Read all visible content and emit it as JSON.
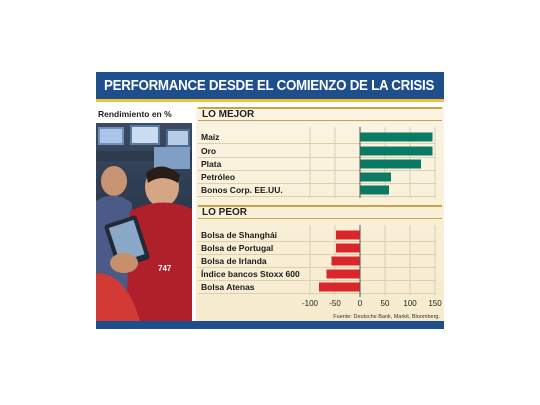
{
  "header": {
    "title": "PERFORMANCE DESDE EL COMIENZO DE LA CRISIS"
  },
  "subtitle": "Rendimiento en %",
  "source": "Fuente: Deutsche Bank, Markit, Bloomberg.",
  "colors": {
    "header_bg": "#1f4e8c",
    "header_underline": "#f4c232",
    "best_bar": "#0a7a64",
    "worst_bar": "#d8262a",
    "panel_bg": "#f8eed6"
  },
  "photo": {
    "description_icon": "trader-photo"
  },
  "chart_data": {
    "type": "bar",
    "orientation": "horizontal",
    "x_ticks": [
      -100,
      -50,
      0,
      50,
      100,
      150
    ],
    "xlim": [
      -105,
      152
    ],
    "groups": [
      {
        "name": "LO MEJOR",
        "categories": [
          "Maíz",
          "Oro",
          "Plata",
          "Petróleo",
          "Bonos Corp. EE.UU."
        ],
        "values": [
          145,
          145,
          122,
          62,
          58
        ]
      },
      {
        "name": "LO PEOR",
        "categories": [
          "Bolsa de Shanghái",
          "Bolsa de Portugal",
          "Bolsa de Irlanda",
          "Índice bancos Stoxx 600",
          "Bolsa Atenas"
        ],
        "values": [
          -48,
          -48,
          -57,
          -67,
          -82
        ]
      }
    ]
  }
}
